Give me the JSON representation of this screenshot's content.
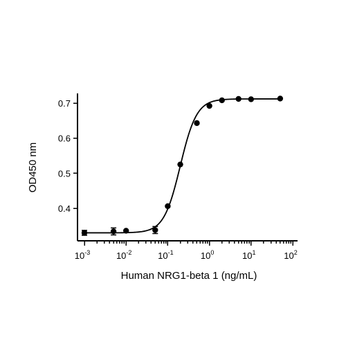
{
  "chart_data": {
    "type": "scatter",
    "title": "",
    "xlabel": "Human NRG1-beta 1 (ng/mL)",
    "ylabel": "OD450 nm",
    "x_scale": "log",
    "x_range": [
      0.001,
      100
    ],
    "y_range": [
      0.32,
      0.72
    ],
    "x_ticks": [
      {
        "value": 0.001,
        "base": "10",
        "exp": "-3"
      },
      {
        "value": 0.01,
        "base": "10",
        "exp": "-2"
      },
      {
        "value": 0.1,
        "base": "10",
        "exp": "-1"
      },
      {
        "value": 1,
        "base": "10",
        "exp": "0"
      },
      {
        "value": 10,
        "base": "10",
        "exp": "1"
      },
      {
        "value": 100,
        "base": "10",
        "exp": "2"
      }
    ],
    "y_ticks": [
      {
        "value": 0.4,
        "label": "0.4"
      },
      {
        "value": 0.5,
        "label": "0.5"
      },
      {
        "value": 0.6,
        "label": "0.6"
      },
      {
        "value": 0.7,
        "label": "0.7"
      }
    ],
    "grid": false,
    "series": [
      {
        "points": [
          {
            "x": 0.001,
            "y": 0.33,
            "err": 0.007
          },
          {
            "x": 0.005,
            "y": 0.334,
            "err": 0.01
          },
          {
            "x": 0.01,
            "y": 0.336,
            "err": 0.0
          },
          {
            "x": 0.05,
            "y": 0.338,
            "err": 0.01
          },
          {
            "x": 0.1,
            "y": 0.406,
            "err": 0.0
          },
          {
            "x": 0.2,
            "y": 0.525,
            "err": 0.0
          },
          {
            "x": 0.5,
            "y": 0.643,
            "err": 0.0
          },
          {
            "x": 1,
            "y": 0.692,
            "err": 0.0
          },
          {
            "x": 2,
            "y": 0.708,
            "err": 0.0
          },
          {
            "x": 5,
            "y": 0.712,
            "err": 0.0
          },
          {
            "x": 10,
            "y": 0.711,
            "err": 0.0
          },
          {
            "x": 50,
            "y": 0.713,
            "err": 0.0
          }
        ],
        "fit": {
          "bottom": 0.33,
          "top": 0.712,
          "ec50": 0.2,
          "hill": 2.2
        }
      }
    ]
  }
}
